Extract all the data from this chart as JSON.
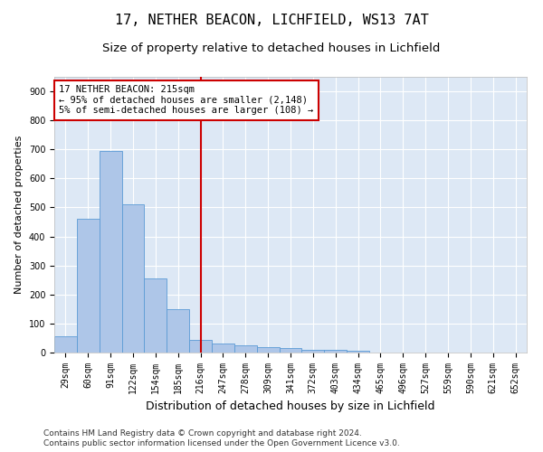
{
  "title1": "17, NETHER BEACON, LICHFIELD, WS13 7AT",
  "title2": "Size of property relative to detached houses in Lichfield",
  "xlabel": "Distribution of detached houses by size in Lichfield",
  "ylabel": "Number of detached properties",
  "categories": [
    "29sqm",
    "60sqm",
    "91sqm",
    "122sqm",
    "154sqm",
    "185sqm",
    "216sqm",
    "247sqm",
    "278sqm",
    "309sqm",
    "341sqm",
    "372sqm",
    "403sqm",
    "434sqm",
    "465sqm",
    "496sqm",
    "527sqm",
    "559sqm",
    "590sqm",
    "621sqm",
    "652sqm"
  ],
  "values": [
    55,
    460,
    695,
    510,
    255,
    150,
    45,
    30,
    25,
    20,
    15,
    10,
    10,
    5,
    0,
    0,
    0,
    0,
    0,
    0,
    0
  ],
  "bar_color": "#aec6e8",
  "bar_edge_color": "#5b9bd5",
  "property_line_x": 6,
  "property_line_label": "17 NETHER BEACON: 215sqm",
  "annotation_line1": "← 95% of detached houses are smaller (2,148)",
  "annotation_line2": "5% of semi-detached houses are larger (108) →",
  "annotation_box_color": "#ffffff",
  "annotation_box_edge": "#cc0000",
  "vline_color": "#cc0000",
  "background_color": "#dde8f5",
  "ylim": [
    0,
    950
  ],
  "yticks": [
    0,
    100,
    200,
    300,
    400,
    500,
    600,
    700,
    800,
    900
  ],
  "footer1": "Contains HM Land Registry data © Crown copyright and database right 2024.",
  "footer2": "Contains public sector information licensed under the Open Government Licence v3.0.",
  "title1_fontsize": 11,
  "title2_fontsize": 9.5,
  "xlabel_fontsize": 9,
  "ylabel_fontsize": 8,
  "tick_fontsize": 7,
  "annot_fontsize": 7.5,
  "footer_fontsize": 6.5
}
